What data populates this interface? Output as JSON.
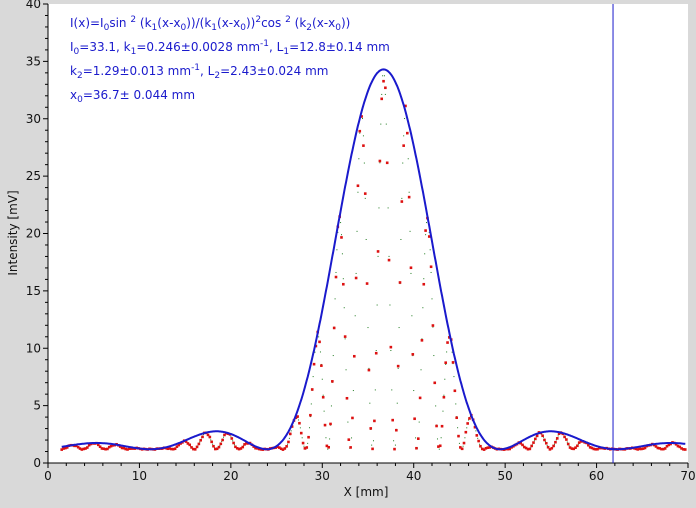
{
  "colors": {
    "background": "#d9d9d9",
    "plot_background": "#ffffff",
    "fit": "#1a1acc",
    "data_points": "#dd1111",
    "secondary_points": "#1f7a1f",
    "cursor": "#1a1acc",
    "axis": "#000000"
  },
  "annotation": {
    "line1": {
      "a": "I(x)=I",
      "b": "0",
      "c": "sin ",
      "d": "2",
      "e": " (k",
      "f": "1",
      "g": "(x-x",
      "h": "0",
      "i": "))/(k",
      "j": "1",
      "k": "(x-x",
      "l": "0",
      "m": "))",
      "n": "2",
      "o": "cos ",
      "p": "2",
      "q": " (k",
      "r": "2",
      "s": "(x-x",
      "t": "0",
      "u": "))"
    },
    "line2": {
      "a": "I",
      "b": "0",
      "c": "=33.1,  k",
      "d": "1",
      "e": "=0.246±0.0028 mm",
      "f": "-1",
      "g": ",   L",
      "h": "1",
      "i": "=12.8±0.14 mm"
    },
    "line3": {
      "a": "k",
      "b": "2",
      "c": "=1.29±0.013 mm",
      "d": "-1",
      "e": ",   L",
      "f": "2",
      "g": "=2.43±0.024 mm"
    },
    "line4": {
      "a": "x",
      "b": "0",
      "c": "=36.7±  0.044 mm"
    }
  },
  "chart_data": {
    "type": "scatter",
    "xlabel": "X [mm]",
    "ylabel": "Intensity [mV]",
    "xlim": [
      0,
      70
    ],
    "ylim": [
      0,
      40
    ],
    "x_ticks": [
      0,
      10,
      20,
      30,
      40,
      50,
      60,
      70
    ],
    "y_ticks": [
      0,
      5,
      10,
      15,
      20,
      25,
      30,
      35,
      40
    ],
    "cursor_x": 61.8,
    "grid": false,
    "fit": {
      "I0": 33.1,
      "k1": 0.246,
      "L1": 12.8,
      "k2": 1.29,
      "L2": 2.43,
      "x0": 36.7,
      "baseline": 1.2
    },
    "series": [
      {
        "kind": "envelope",
        "color": "#1a1acc"
      },
      {
        "kind": "measured",
        "color": "#dd1111"
      },
      {
        "kind": "fit-points",
        "color": "#1f7a1f"
      }
    ],
    "x_range_data": [
      1.5,
      69.8
    ]
  }
}
